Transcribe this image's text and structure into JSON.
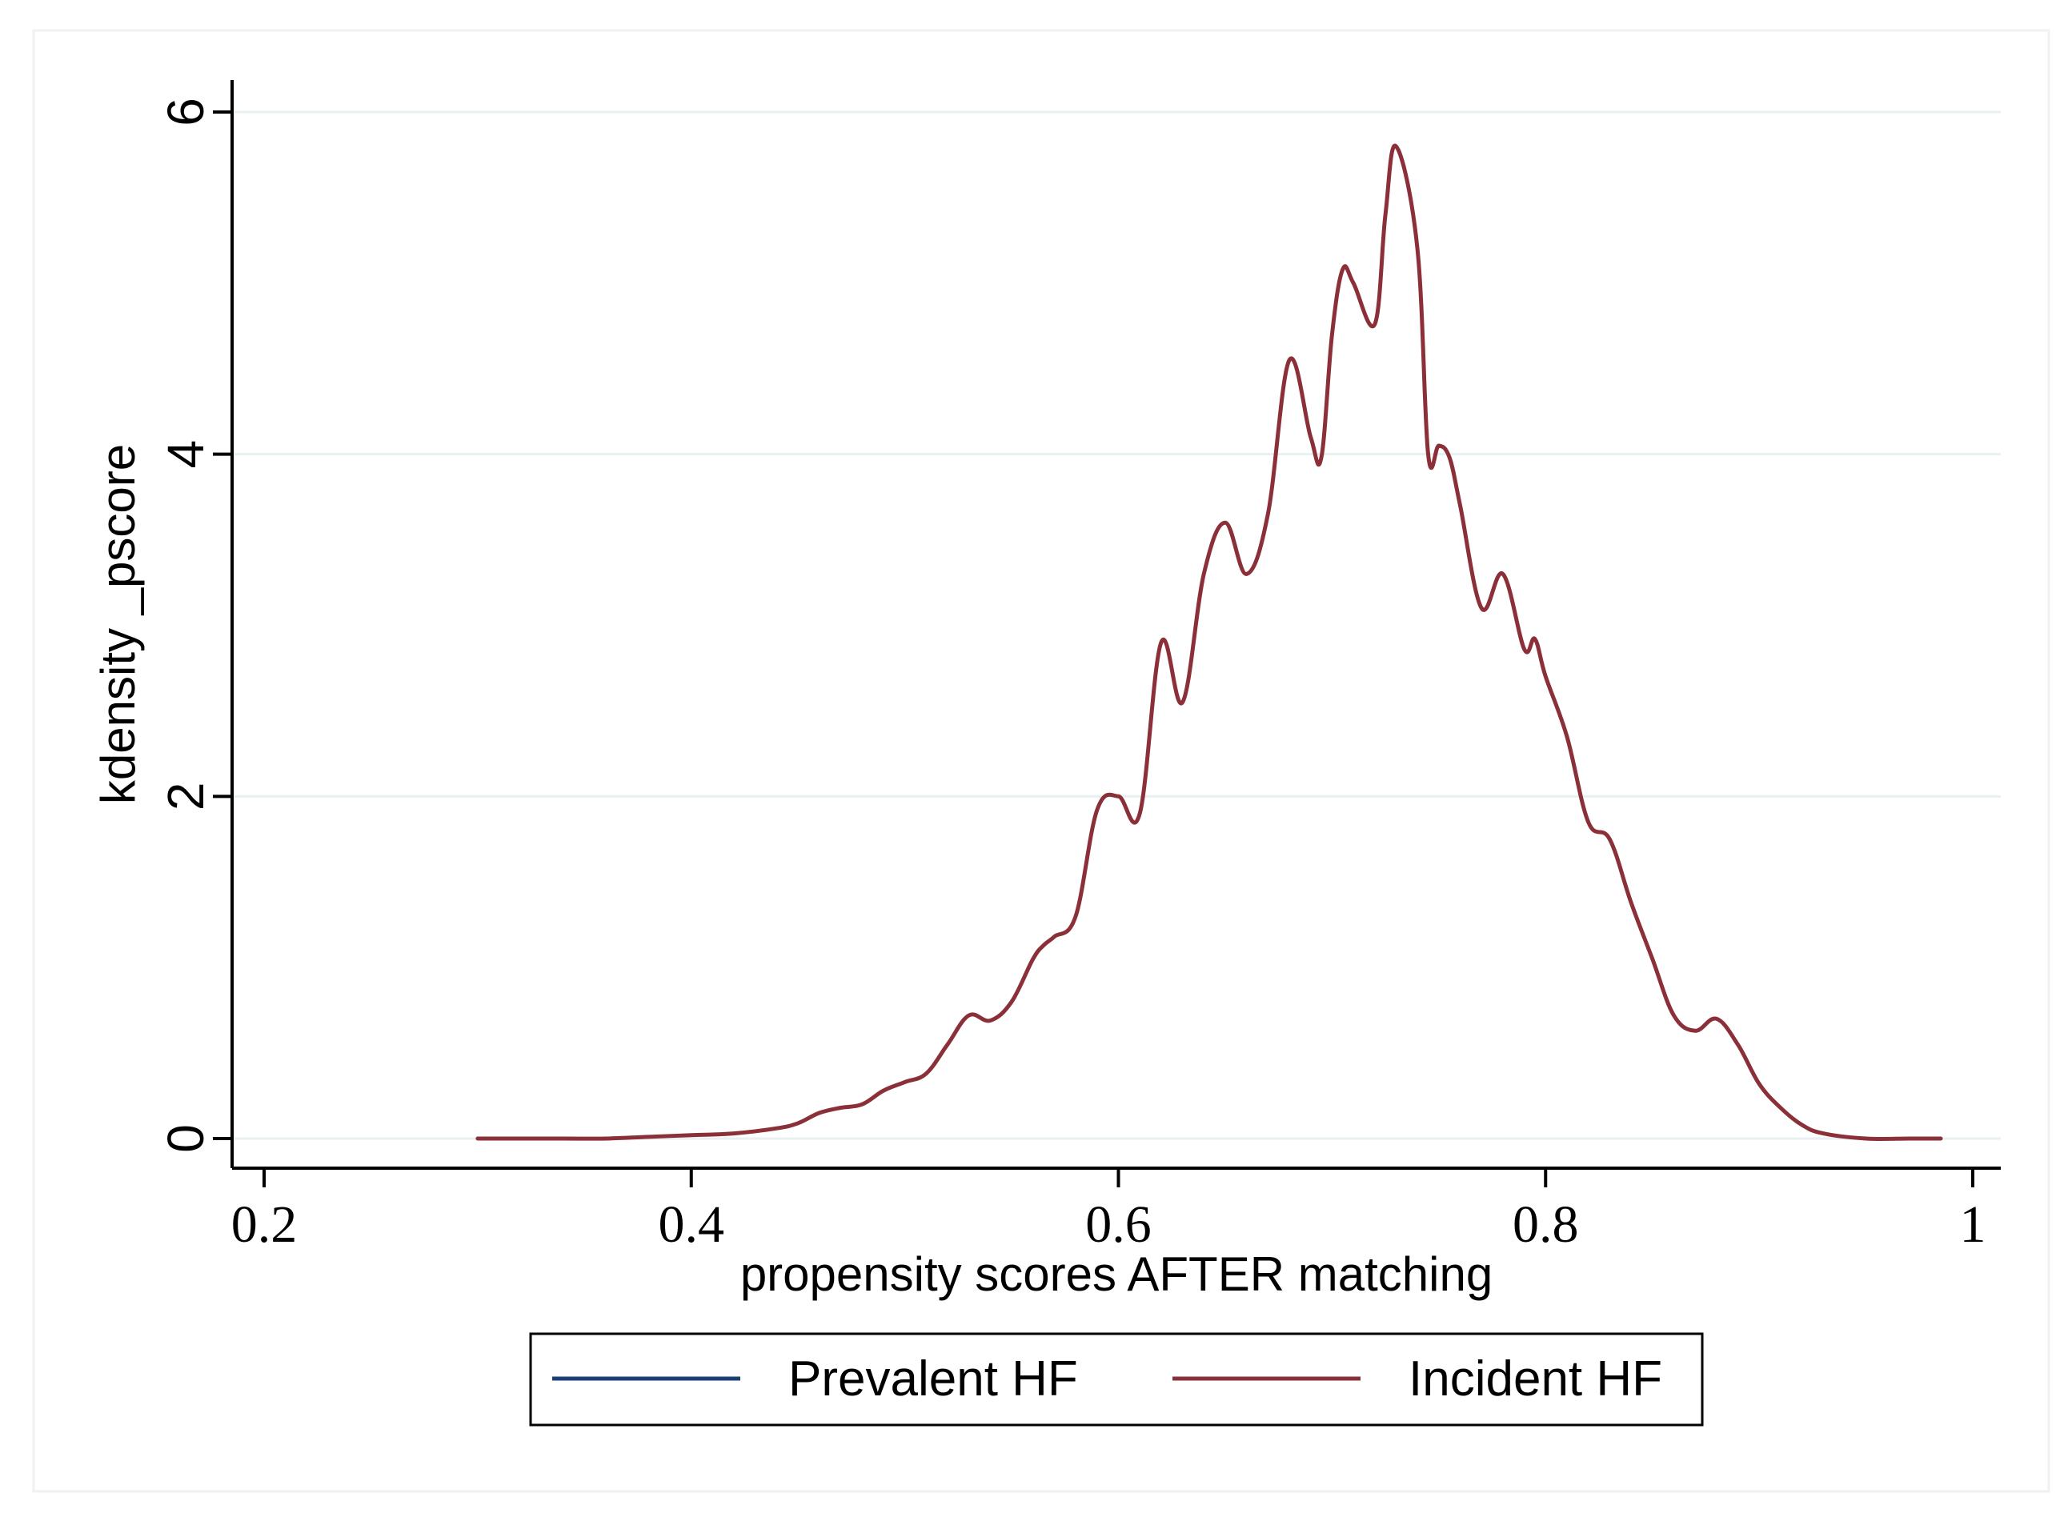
{
  "chart_data": {
    "type": "line",
    "xlabel": "propensity scores AFTER matching",
    "ylabel": "kdensity _pscore",
    "xlim": [
      0.2,
      1
    ],
    "ylim": [
      0,
      6
    ],
    "xticks": [
      {
        "value": 0.2,
        "label": "0.2"
      },
      {
        "value": 0.4,
        "label": "0.4"
      },
      {
        "value": 0.6,
        "label": "0.6"
      },
      {
        "value": 0.8,
        "label": "0.8"
      },
      {
        "value": 1.0,
        "label": "1"
      }
    ],
    "yticks": [
      {
        "value": 0,
        "label": "0"
      },
      {
        "value": 2,
        "label": "2"
      },
      {
        "value": 4,
        "label": "4"
      },
      {
        "value": 6,
        "label": "6"
      }
    ],
    "grid": "horizontal",
    "legend_position": "bottom",
    "series": [
      {
        "name": "Prevalent HF",
        "color": "#1a3f73",
        "x": [],
        "y": []
      },
      {
        "name": "Incident HF",
        "color": "#8b3039",
        "x": [
          0.3,
          0.32,
          0.34,
          0.36,
          0.38,
          0.4,
          0.42,
          0.44,
          0.45,
          0.46,
          0.47,
          0.48,
          0.49,
          0.5,
          0.51,
          0.52,
          0.53,
          0.54,
          0.55,
          0.56,
          0.565,
          0.57,
          0.58,
          0.59,
          0.6,
          0.61,
          0.62,
          0.63,
          0.64,
          0.65,
          0.66,
          0.67,
          0.68,
          0.69,
          0.695,
          0.7,
          0.705,
          0.71,
          0.72,
          0.725,
          0.73,
          0.74,
          0.745,
          0.75,
          0.755,
          0.76,
          0.77,
          0.78,
          0.79,
          0.795,
          0.8,
          0.81,
          0.82,
          0.83,
          0.84,
          0.85,
          0.86,
          0.87,
          0.88,
          0.89,
          0.9,
          0.91,
          0.92,
          0.93,
          0.95,
          0.97,
          0.985
        ],
        "y": [
          0.0,
          0.0,
          0.0,
          0.0,
          0.01,
          0.02,
          0.03,
          0.06,
          0.09,
          0.15,
          0.18,
          0.2,
          0.28,
          0.33,
          0.38,
          0.55,
          0.72,
          0.69,
          0.8,
          1.05,
          1.13,
          1.18,
          1.3,
          1.92,
          2.0,
          1.9,
          2.9,
          2.55,
          3.3,
          3.6,
          3.3,
          3.65,
          4.55,
          4.1,
          3.98,
          4.7,
          5.08,
          5.0,
          4.76,
          5.4,
          5.8,
          5.2,
          4.0,
          4.05,
          3.98,
          3.7,
          3.1,
          3.3,
          2.86,
          2.92,
          2.7,
          2.35,
          1.85,
          1.75,
          1.38,
          1.05,
          0.72,
          0.63,
          0.7,
          0.55,
          0.32,
          0.18,
          0.08,
          0.03,
          0.0,
          0.0,
          0.0
        ]
      }
    ]
  }
}
